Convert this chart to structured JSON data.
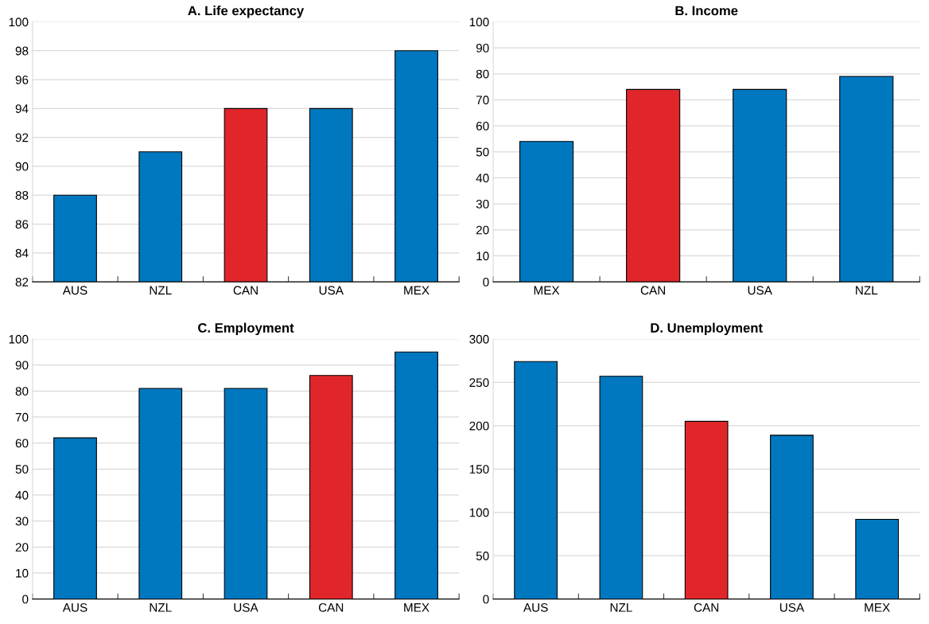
{
  "chart_data": [
    {
      "type": "bar",
      "title": "A. Life expectancy",
      "categories": [
        "AUS",
        "NZL",
        "CAN",
        "USA",
        "MEX"
      ],
      "values": [
        88,
        91,
        94,
        94,
        98
      ],
      "colors": [
        "#0078c0",
        "#0078c0",
        "#e0262b",
        "#0078c0",
        "#0078c0"
      ],
      "ylim": [
        82,
        100
      ],
      "yticks": [
        82,
        84,
        86,
        88,
        90,
        92,
        94,
        96,
        98,
        100
      ],
      "grid": "y"
    },
    {
      "type": "bar",
      "title": "B. Income",
      "categories": [
        "MEX",
        "CAN",
        "USA",
        "NZL"
      ],
      "values": [
        54,
        74,
        74,
        79
      ],
      "colors": [
        "#0078c0",
        "#e0262b",
        "#0078c0",
        "#0078c0"
      ],
      "ylim": [
        0,
        100
      ],
      "yticks": [
        0,
        10,
        20,
        30,
        40,
        50,
        60,
        70,
        80,
        90,
        100
      ],
      "grid": "y"
    },
    {
      "type": "bar",
      "title": "C. Employment",
      "categories": [
        "AUS",
        "NZL",
        "USA",
        "CAN",
        "MEX"
      ],
      "values": [
        62,
        81,
        81,
        86,
        95
      ],
      "colors": [
        "#0078c0",
        "#0078c0",
        "#0078c0",
        "#e0262b",
        "#0078c0"
      ],
      "ylim": [
        0,
        100
      ],
      "yticks": [
        0,
        10,
        20,
        30,
        40,
        50,
        60,
        70,
        80,
        90,
        100
      ],
      "grid": "y"
    },
    {
      "type": "bar",
      "title": "D. Unemployment",
      "categories": [
        "AUS",
        "NZL",
        "CAN",
        "USA",
        "MEX"
      ],
      "values": [
        274,
        257,
        205,
        189,
        92
      ],
      "colors": [
        "#0078c0",
        "#0078c0",
        "#e0262b",
        "#0078c0",
        "#0078c0"
      ],
      "ylim": [
        0,
        300
      ],
      "yticks": [
        0,
        50,
        100,
        150,
        200,
        250,
        300
      ],
      "grid": "y"
    }
  ]
}
